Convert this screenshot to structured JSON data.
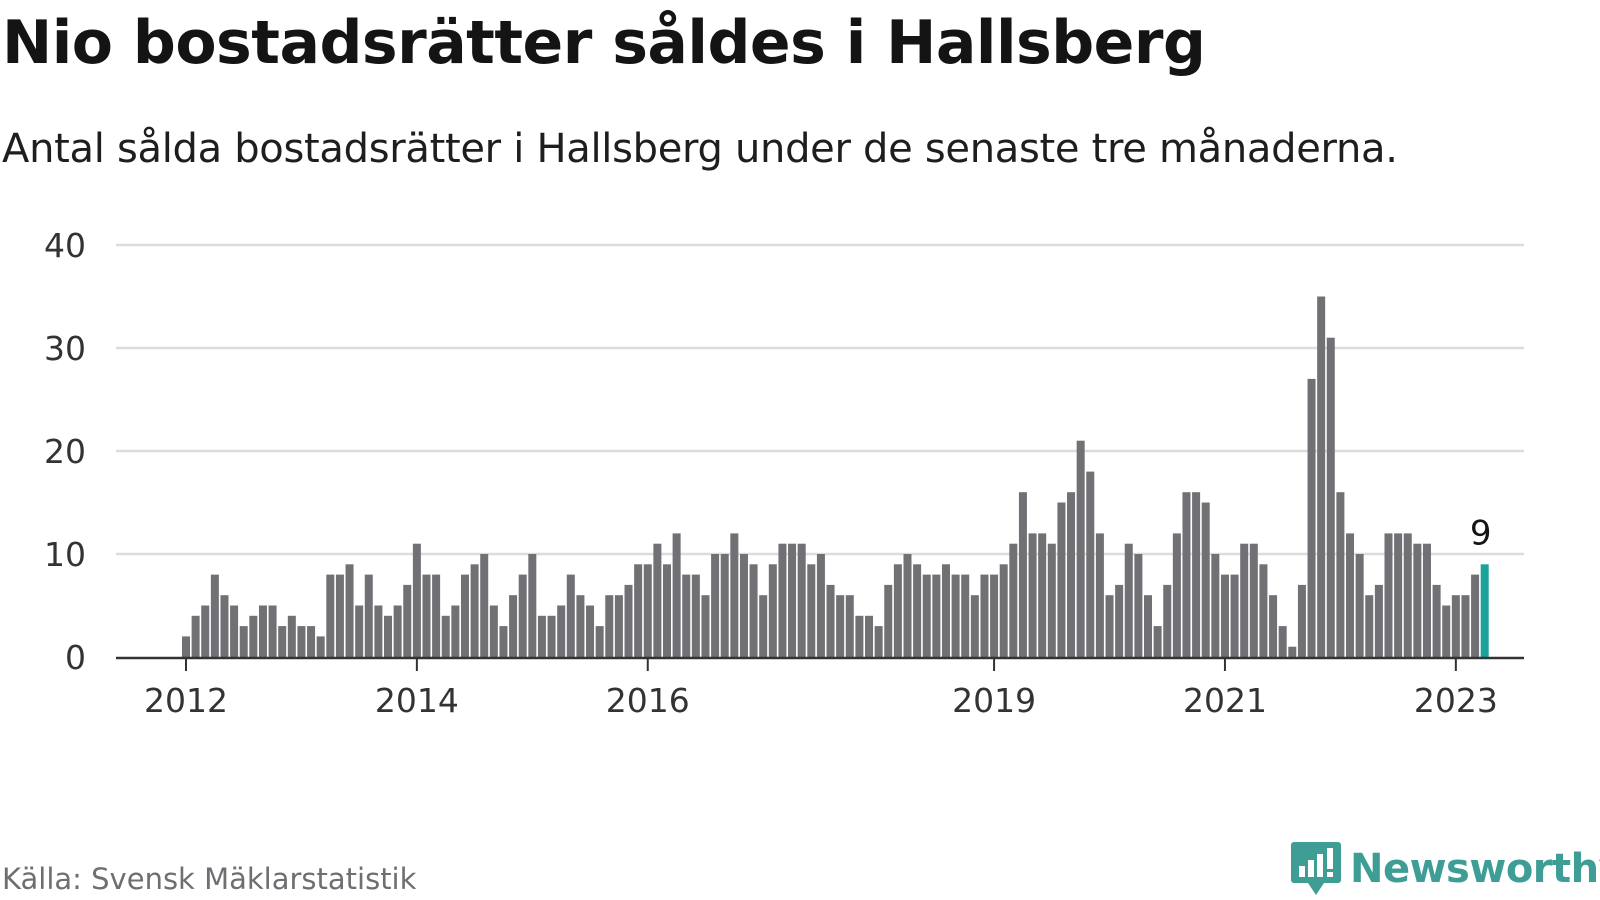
{
  "header": {
    "title": "Nio bostadsrätter såldes i Hallsberg",
    "subtitle": "Antal sålda bostadsrätter i Hallsberg under de senaste tre månaderna."
  },
  "footer": {
    "source": "Källa: Svensk Mäklarstatistik",
    "brand": "Newsworthy"
  },
  "colors": {
    "bar": "#707075",
    "highlight": "#1aa39a",
    "grid": "#dcdcdc",
    "axis": "#333333",
    "brand": "#3e9e96"
  },
  "chart_data": {
    "type": "bar",
    "title": "Nio bostadsrätter såldes i Hallsberg",
    "xlabel": "",
    "ylabel": "",
    "ylim": [
      0,
      40
    ],
    "yticks": [
      0,
      10,
      20,
      30,
      40
    ],
    "grid": true,
    "x_tick_labels": [
      {
        "label": "2012",
        "index": 0
      },
      {
        "label": "2014",
        "index": 24
      },
      {
        "label": "2016",
        "index": 48
      },
      {
        "label": "2019",
        "index": 84
      },
      {
        "label": "2021",
        "index": 108
      },
      {
        "label": "2023",
        "index": 132
      }
    ],
    "highlight_index": 135,
    "highlight_label": "9",
    "values": [
      2,
      4,
      5,
      8,
      6,
      5,
      3,
      4,
      5,
      5,
      3,
      4,
      3,
      3,
      2,
      8,
      8,
      9,
      5,
      8,
      5,
      4,
      5,
      7,
      11,
      8,
      8,
      4,
      5,
      8,
      9,
      10,
      5,
      3,
      6,
      8,
      10,
      4,
      4,
      5,
      8,
      6,
      5,
      3,
      6,
      6,
      7,
      9,
      9,
      11,
      9,
      12,
      8,
      8,
      6,
      10,
      10,
      12,
      10,
      9,
      6,
      9,
      11,
      11,
      11,
      9,
      10,
      7,
      6,
      6,
      4,
      4,
      3,
      7,
      9,
      10,
      9,
      8,
      8,
      9,
      8,
      8,
      6,
      8,
      8,
      9,
      11,
      16,
      12,
      12,
      11,
      15,
      16,
      21,
      18,
      12,
      6,
      7,
      11,
      10,
      6,
      3,
      7,
      12,
      16,
      16,
      15,
      10,
      8,
      8,
      11,
      11,
      9,
      6,
      3,
      1,
      7,
      27,
      35,
      31,
      16,
      12,
      10,
      6,
      7,
      12,
      12,
      12,
      11,
      11,
      7,
      5,
      6,
      6,
      8,
      9
    ]
  }
}
